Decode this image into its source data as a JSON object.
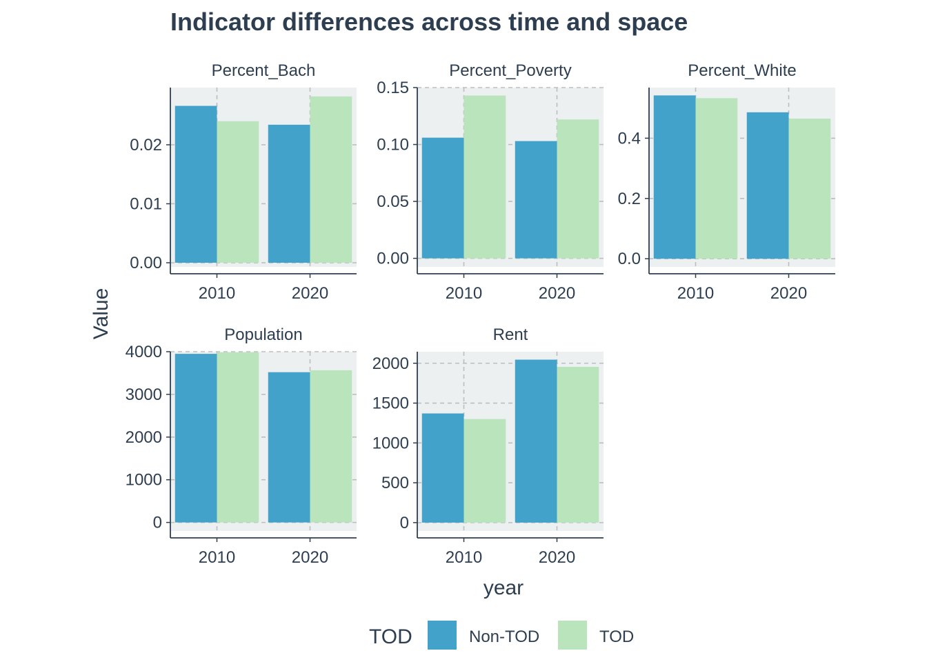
{
  "chart_data": {
    "type": "bar",
    "title": "Indicator differences across time and space",
    "xlabel": "year",
    "ylabel": "Value",
    "grid": true,
    "legend_placement": "bottom",
    "legend_title": "TOD",
    "categories": [
      "2010",
      "2020"
    ],
    "colors": {
      "Non-TOD": "#43a2ca",
      "TOD": "#bae4bc",
      "panel_bg": "#ecf0f1",
      "grid": "#bdbdbd",
      "text": "#2d3e50"
    },
    "series_names": [
      "Non-TOD",
      "TOD"
    ],
    "panels": [
      {
        "name": "Percent_Bach",
        "ylim": [
          -0.0007,
          0.0297
        ],
        "ticks": [
          0,
          0.01,
          0.02
        ],
        "tick_labels": [
          "0.00",
          "0.01",
          "0.02"
        ],
        "series": [
          {
            "name": "Non-TOD",
            "values": [
              0.0266,
              0.0234
            ]
          },
          {
            "name": "TOD",
            "values": [
              0.024,
              0.0282
            ]
          }
        ]
      },
      {
        "name": "Percent_Poverty",
        "ylim": [
          -0.0075,
          0.15
        ],
        "ticks": [
          0,
          0.05,
          0.1,
          0.15
        ],
        "tick_labels": [
          "0.00",
          "0.05",
          "0.10",
          "0.15"
        ],
        "series": [
          {
            "name": "Non-TOD",
            "values": [
              0.106,
              0.103
            ]
          },
          {
            "name": "TOD",
            "values": [
              0.143,
              0.122
            ]
          }
        ]
      },
      {
        "name": "Percent_White",
        "ylim": [
          -0.027,
          0.568
        ],
        "ticks": [
          0,
          0.2,
          0.4
        ],
        "tick_labels": [
          "0.0",
          "0.2",
          "0.4"
        ],
        "series": [
          {
            "name": "Non-TOD",
            "values": [
              0.542,
              0.486
            ]
          },
          {
            "name": "TOD",
            "values": [
              0.533,
              0.465
            ]
          }
        ]
      },
      {
        "name": "Population",
        "ylim": [
          -200,
          4000
        ],
        "ticks": [
          0,
          1000,
          2000,
          3000,
          4000
        ],
        "tick_labels": [
          "0",
          "1000",
          "2000",
          "3000",
          "4000"
        ],
        "series": [
          {
            "name": "Non-TOD",
            "values": [
              3950,
              3520
            ]
          },
          {
            "name": "TOD",
            "values": [
              3985,
              3565
            ]
          }
        ]
      },
      {
        "name": "Rent",
        "ylim": [
          -105,
          2145
        ],
        "ticks": [
          0,
          500,
          1000,
          1500,
          2000
        ],
        "tick_labels": [
          "0",
          "500",
          "1000",
          "1500",
          "2000"
        ],
        "series": [
          {
            "name": "Non-TOD",
            "values": [
              1370,
              2045
            ]
          },
          {
            "name": "TOD",
            "values": [
              1300,
              1955
            ]
          }
        ]
      }
    ]
  }
}
